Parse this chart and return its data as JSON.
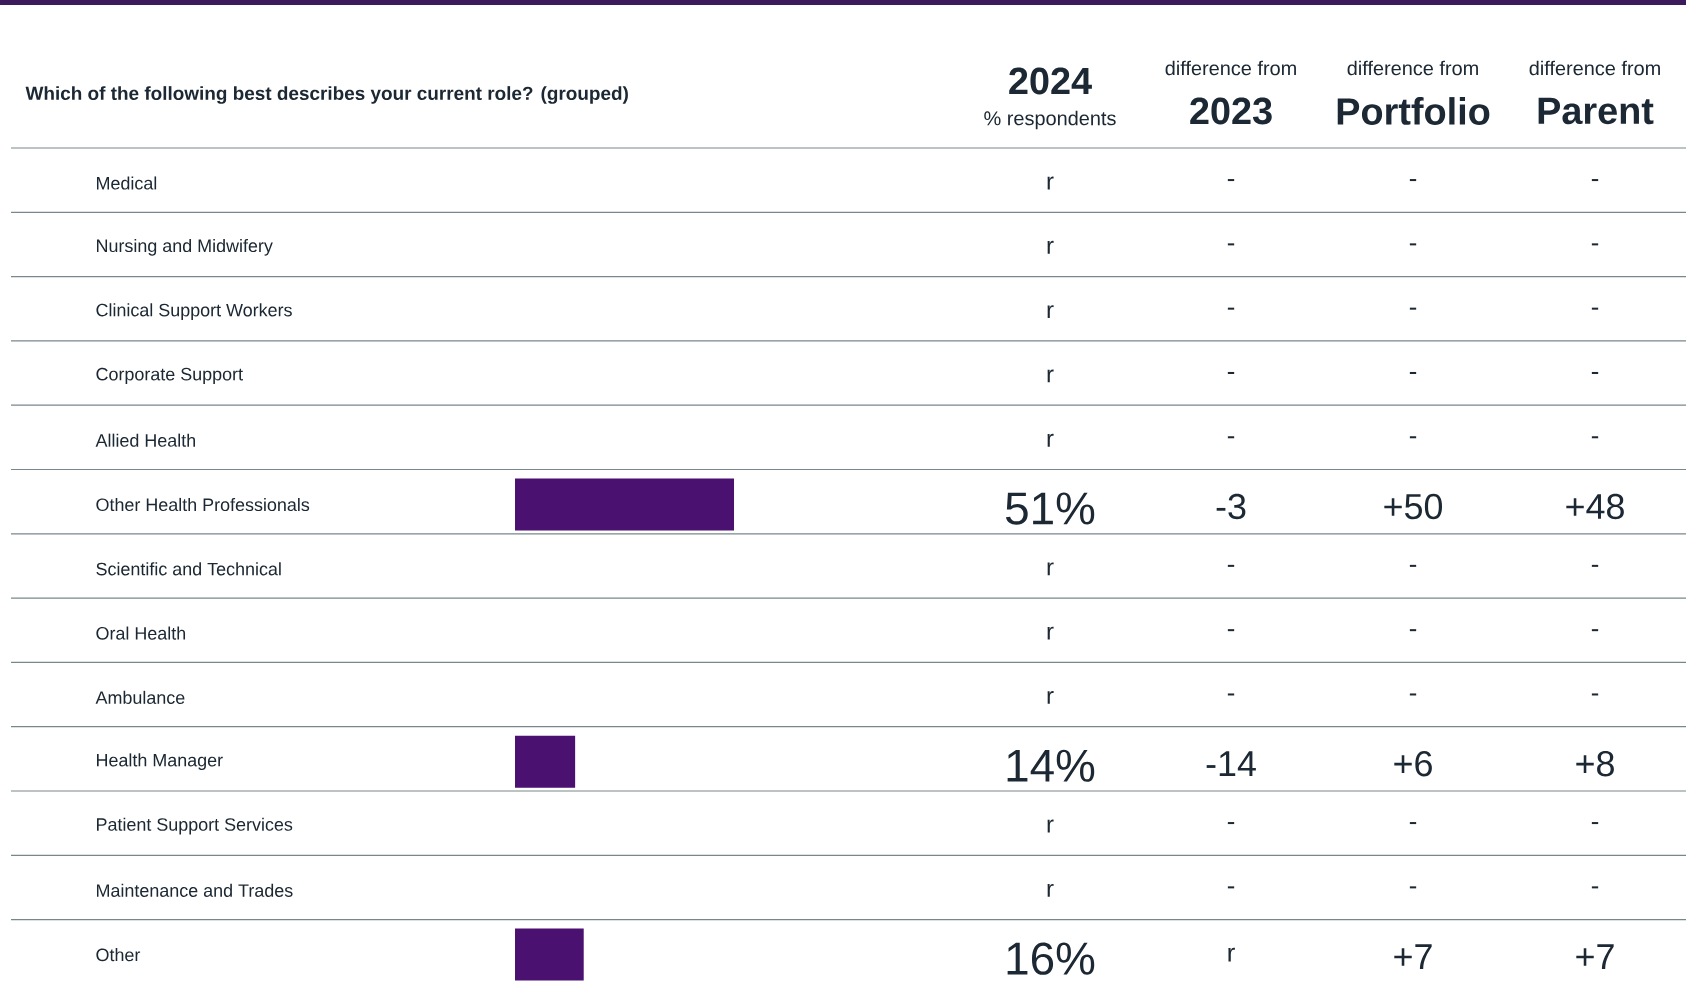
{
  "chart_data": {
    "type": "bar",
    "orientation": "horizontal",
    "title": "Which of the following best describes your current role? (grouped)",
    "categories": [
      "Medical",
      "Nursing and Midwifery",
      "Clinical Support Workers",
      "Corporate Support",
      "Allied Health",
      "Other Health Professionals",
      "Scientific and Technical",
      "Oral Health",
      "Ambulance",
      "Health Manager",
      "Patient Support Services",
      "Maintenance and Trades",
      "Other"
    ],
    "values": [
      null,
      null,
      null,
      null,
      null,
      51,
      null,
      null,
      null,
      14,
      null,
      null,
      16
    ],
    "value_labels": [
      "r",
      "r",
      "r",
      "r",
      "r",
      "51%",
      "r",
      "r",
      "r",
      "14%",
      "r",
      "r",
      "16%"
    ],
    "color": "#4a1170",
    "annotations": [
      "2024",
      "% respondents",
      "difference from",
      "difference from",
      "difference from",
      "2023",
      "Portfolio",
      "Parent",
      "-",
      "-",
      "-",
      "-",
      "-",
      "-",
      "-",
      "-",
      "-",
      "-",
      "-",
      "-",
      "-",
      "-",
      "-",
      "-3",
      "+50",
      "+48",
      "-",
      "-",
      "-",
      "-",
      "-",
      "-",
      "-",
      "-",
      "-",
      "-14",
      "+6",
      "+8",
      "-",
      "-",
      "-",
      "-",
      "-",
      "-",
      "r",
      "+7",
      "+7"
    ]
  }
}
